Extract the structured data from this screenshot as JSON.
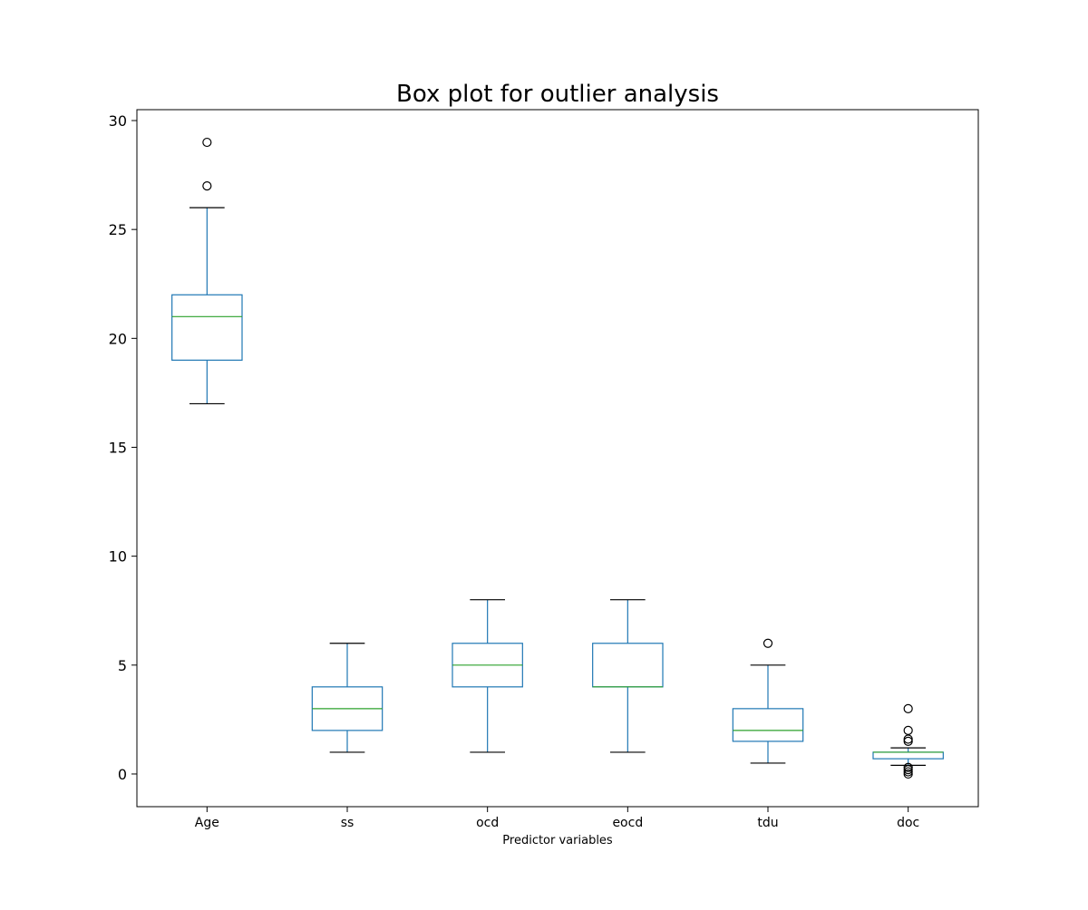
{
  "chart_data": {
    "type": "box",
    "title": "Box plot for outlier analysis",
    "xlabel": "Predictor variables",
    "ylabel": "",
    "ylim": [
      -1.5,
      30.5
    ],
    "yticks": [
      0,
      5,
      10,
      15,
      20,
      25,
      30
    ],
    "grid": false,
    "colors": {
      "box": "#1f77b4",
      "median": "#2ca02c",
      "whisker_cap": "#000000",
      "outlier": "#000000"
    },
    "boxes": [
      {
        "label": "Age",
        "whisker_low": 17,
        "q1": 19,
        "median": 21,
        "q3": 22,
        "whisker_high": 26,
        "outliers": [
          27,
          29
        ]
      },
      {
        "label": "ss",
        "whisker_low": 1,
        "q1": 2,
        "median": 3,
        "q3": 4,
        "whisker_high": 6,
        "outliers": []
      },
      {
        "label": "ocd",
        "whisker_low": 1,
        "q1": 4,
        "median": 5,
        "q3": 6,
        "whisker_high": 8,
        "outliers": []
      },
      {
        "label": "eocd",
        "whisker_low": 1,
        "q1": 4,
        "median": 4,
        "q3": 6,
        "whisker_high": 8,
        "outliers": []
      },
      {
        "label": "tdu",
        "whisker_low": 0.5,
        "q1": 1.5,
        "median": 2,
        "q3": 3,
        "whisker_high": 5,
        "outliers": [
          6
        ]
      },
      {
        "label": "doc",
        "whisker_low": 0.4,
        "q1": 0.7,
        "median": 1,
        "q3": 1,
        "whisker_high": 1.2,
        "outliers": [
          0,
          0.1,
          0.2,
          0.3,
          1.5,
          1.6,
          2,
          3
        ]
      }
    ]
  }
}
